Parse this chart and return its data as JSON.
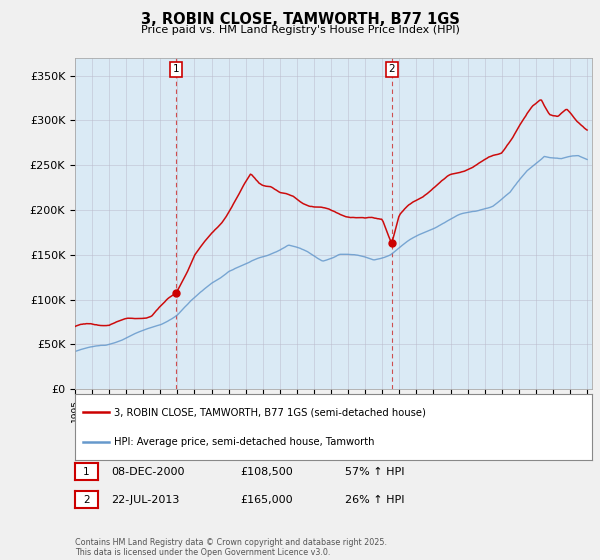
{
  "title": "3, ROBIN CLOSE, TAMWORTH, B77 1GS",
  "subtitle": "Price paid vs. HM Land Registry's House Price Index (HPI)",
  "legend_line1": "3, ROBIN CLOSE, TAMWORTH, B77 1GS (semi-detached house)",
  "legend_line2": "HPI: Average price, semi-detached house, Tamworth",
  "annotation1_label": "1",
  "annotation1_date": "08-DEC-2000",
  "annotation1_price": "£108,500",
  "annotation1_hpi": "57% ↑ HPI",
  "annotation2_label": "2",
  "annotation2_date": "22-JUL-2013",
  "annotation2_price": "£165,000",
  "annotation2_hpi": "26% ↑ HPI",
  "footer": "Contains HM Land Registry data © Crown copyright and database right 2025.\nThis data is licensed under the Open Government Licence v3.0.",
  "line_color_red": "#cc0000",
  "line_color_blue": "#6699cc",
  "vline_color": "#cc3333",
  "background_color": "#f0f0f0",
  "plot_bg_color": "#daeaf5",
  "ylim": [
    0,
    370000
  ],
  "yticks": [
    0,
    50000,
    100000,
    150000,
    200000,
    250000,
    300000,
    350000
  ],
  "ytick_labels": [
    "£0",
    "£50K",
    "£100K",
    "£150K",
    "£200K",
    "£250K",
    "£300K",
    "£350K"
  ],
  "sale1_year": 2000.92,
  "sale1_price": 108500,
  "sale2_year": 2013.55,
  "sale2_price": 165000
}
